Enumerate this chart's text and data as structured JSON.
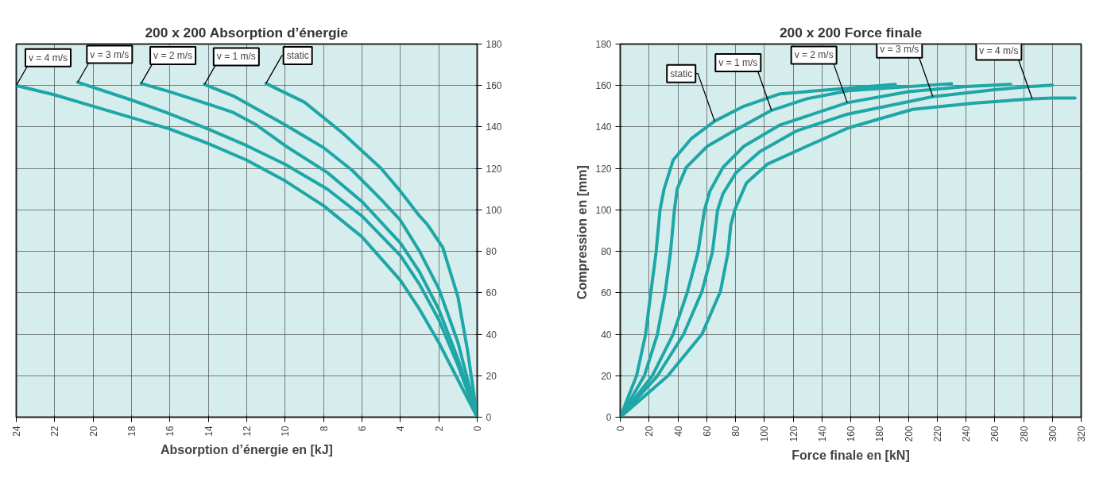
{
  "chart_data": [
    {
      "type": "line",
      "title": "200 x 200 Absorption d’énergie",
      "xlabel": "Absorption d’énergie en [kJ]",
      "xlim": [
        24,
        0
      ],
      "ylim": [
        0,
        180
      ],
      "xticks": [
        24,
        22,
        20,
        18,
        16,
        14,
        12,
        10,
        8,
        6,
        4,
        2,
        0
      ],
      "yticks": [
        0,
        20,
        40,
        60,
        80,
        100,
        120,
        140,
        160,
        180
      ],
      "grid": true,
      "series": [
        {
          "name": "v = 4 m/s",
          "color": "#1fa6a6",
          "x": [
            24,
            22,
            20,
            18,
            16,
            14,
            12,
            10,
            8,
            6,
            4,
            3,
            2,
            1,
            0
          ],
          "values": [
            160,
            155.5,
            150,
            144.5,
            139,
            132,
            124,
            114,
            102,
            87,
            66,
            52,
            36,
            18,
            0
          ]
        },
        {
          "name": "v = 3 m/s",
          "color": "#1fa6a6",
          "x": [
            20.8,
            18,
            16.2,
            14,
            12,
            10,
            7.8,
            6,
            4,
            3,
            2,
            1,
            0
          ],
          "values": [
            161.6,
            153,
            147,
            139,
            131,
            122,
            110,
            97,
            78,
            64,
            47,
            25,
            0
          ]
        },
        {
          "name": "v = 2 m/s",
          "color": "#1fa6a6",
          "x": [
            17.5,
            16,
            14,
            12.7,
            11.5,
            10,
            7.8,
            6,
            4,
            3,
            2,
            1,
            0
          ],
          "values": [
            161,
            157,
            151,
            147,
            141,
            131,
            118,
            104,
            84,
            70,
            52,
            28,
            0
          ]
        },
        {
          "name": "v = 1 m/s",
          "color": "#1fa6a6",
          "x": [
            14.2,
            12.7,
            10,
            8,
            6.5,
            5,
            4,
            3,
            2,
            1,
            0
          ],
          "values": [
            160.5,
            155,
            141,
            130,
            119,
            105,
            95,
            80,
            62,
            36,
            0
          ]
        },
        {
          "name": "static",
          "color": "#1fa6a6",
          "x": [
            11,
            9,
            7,
            5,
            4,
            3,
            2.6,
            1.8,
            1,
            0.5,
            0
          ],
          "values": [
            161,
            152,
            137,
            120,
            109,
            97,
            93,
            82,
            58,
            32,
            0
          ]
        }
      ]
    },
    {
      "type": "line",
      "title": "200 x 200 Force finale",
      "xlabel": "Force finale en [kN]",
      "ylabel": "Compression en  [mm]",
      "xlim": [
        0,
        320
      ],
      "ylim": [
        0,
        180
      ],
      "xticks": [
        0,
        20,
        40,
        60,
        80,
        100,
        120,
        140,
        160,
        180,
        200,
        220,
        240,
        260,
        280,
        300,
        320
      ],
      "yticks": [
        0,
        20,
        40,
        60,
        80,
        100,
        120,
        140,
        160,
        180
      ],
      "grid": true,
      "series": [
        {
          "name": "static",
          "color": "#1fa6a6",
          "x": [
            0,
            11.3,
            17.6,
            21.3,
            24.9,
            27.6,
            30.4,
            36.7,
            49.5,
            65.5,
            85.8,
            111,
            191
          ],
          "values": [
            0,
            19.9,
            40,
            60.6,
            79.7,
            100,
            110,
            124,
            134.5,
            142.8,
            150,
            156,
            160.6
          ]
        },
        {
          "name": "v = 1 m/s",
          "color": "#1fa6a6",
          "x": [
            0,
            16.7,
            25.8,
            31.3,
            34.9,
            37.6,
            39.5,
            45.8,
            60.4,
            78.5,
            105,
            129.5,
            158.5,
            230
          ],
          "values": [
            0,
            19.9,
            40,
            60.6,
            79.7,
            100,
            110,
            120.5,
            130.7,
            138,
            148,
            153.6,
            157.5,
            160.9
          ]
        },
        {
          "name": "v = 2 m/s",
          "color": "#1fa6a6",
          "x": [
            0,
            22.2,
            36.7,
            46.7,
            54,
            58.5,
            62.2,
            71.3,
            85.8,
            111,
            157.6,
            200,
            240,
            271
          ],
          "values": [
            0,
            19.9,
            40,
            60.6,
            79.7,
            100,
            109,
            120.5,
            130.7,
            141,
            151.7,
            157,
            159.5,
            160.6
          ]
        },
        {
          "name": "v = 3 m/s",
          "color": "#1fa6a6",
          "x": [
            0,
            25.8,
            44,
            56.7,
            64,
            67.6,
            71.3,
            80.4,
            96.7,
            122,
            156.7,
            217,
            260,
            285,
            300
          ],
          "values": [
            0,
            19.9,
            40,
            60.6,
            79.7,
            100,
            107.8,
            118,
            128,
            138,
            146,
            154.6,
            158,
            159.5,
            160.2
          ]
        },
        {
          "name": "v = 4 m/s",
          "color": "#1fa6a6",
          "x": [
            0,
            33,
            56.7,
            69.5,
            74.9,
            76.7,
            79.5,
            87.6,
            102,
            129.5,
            158.5,
            203,
            245,
            286,
            300,
            308,
            315.7
          ],
          "values": [
            0,
            19.9,
            40,
            60.6,
            79.7,
            92.5,
            100,
            113,
            122,
            130.7,
            139.6,
            148.5,
            151.5,
            153.6,
            154,
            154,
            154
          ]
        }
      ]
    }
  ]
}
